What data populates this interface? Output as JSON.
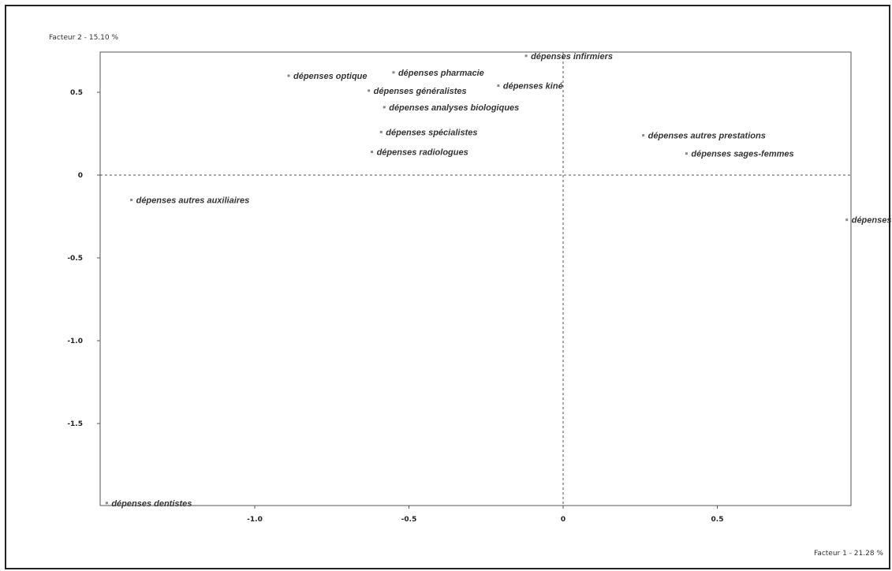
{
  "chart_data": {
    "type": "scatter",
    "x_axis_title": "Facteur 1  -  21.28 %",
    "y_axis_title": "Facteur 2  -  15.10 %",
    "xlim": [
      -1.5,
      0.93
    ],
    "ylim": [
      -2.0,
      0.75
    ],
    "x_ticks": [
      {
        "value": -1.0,
        "label": "-1.0"
      },
      {
        "value": -0.5,
        "label": "-0.5"
      },
      {
        "value": 0,
        "label": "0"
      },
      {
        "value": 0.5,
        "label": "0.5"
      }
    ],
    "y_ticks": [
      {
        "value": 0.5,
        "label": "0.5"
      },
      {
        "value": 0,
        "label": "0"
      },
      {
        "value": -0.5,
        "label": "-0.5"
      },
      {
        "value": -1.0,
        "label": "-1.0"
      },
      {
        "value": -1.5,
        "label": "-1.5"
      }
    ],
    "reference_lines": "dashed at x=0 and y=0",
    "points": [
      {
        "label": "dépenses infirmiers",
        "x": -0.12,
        "y": 0.72
      },
      {
        "label": "dépenses pharmacie",
        "x": -0.55,
        "y": 0.62
      },
      {
        "label": "dépenses optique",
        "x": -0.89,
        "y": 0.6
      },
      {
        "label": "dépenses kiné",
        "x": -0.21,
        "y": 0.54
      },
      {
        "label": "dépenses généralistes",
        "x": -0.63,
        "y": 0.51
      },
      {
        "label": "dépenses analyses biologiques",
        "x": -0.58,
        "y": 0.41
      },
      {
        "label": "dépenses spécialistes",
        "x": -0.59,
        "y": 0.26
      },
      {
        "label": "dépenses radiologues",
        "x": -0.62,
        "y": 0.14
      },
      {
        "label": "dépenses autres prestations",
        "x": 0.26,
        "y": 0.24
      },
      {
        "label": "dépenses sages-femmes",
        "x": 0.4,
        "y": 0.13
      },
      {
        "label": "dépenses autres auxiliaires",
        "x": -1.4,
        "y": -0.15
      },
      {
        "label": "dépenses hospitalisation",
        "x": 0.92,
        "y": -0.27
      },
      {
        "label": "dépenses dentistes",
        "x": -1.48,
        "y": -1.98
      }
    ],
    "colors": {
      "frame": "#222222",
      "axis": "#555555",
      "text": "#333333",
      "marker": "#888888"
    }
  }
}
